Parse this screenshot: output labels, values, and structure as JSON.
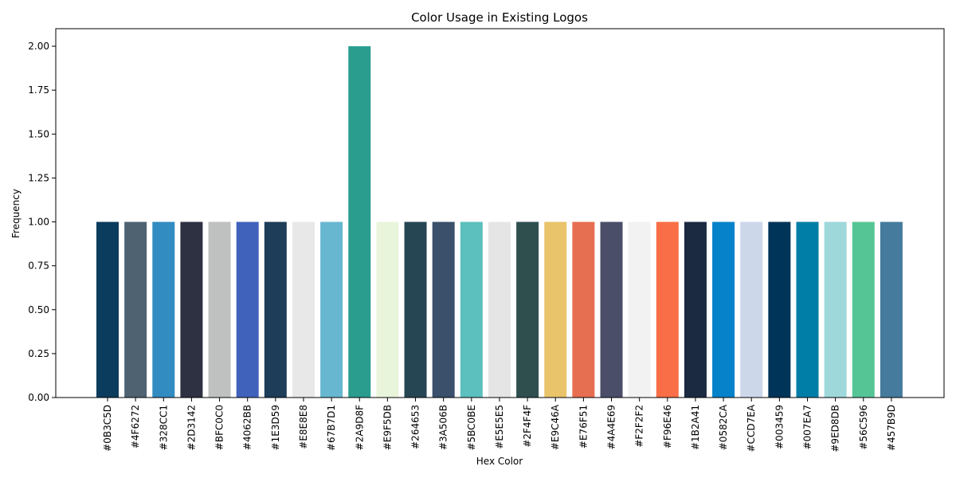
{
  "chart_data": {
    "type": "bar",
    "title": "Color Usage in Existing Logos",
    "xlabel": "Hex Color",
    "ylabel": "Frequency",
    "ylim": [
      0,
      2.1
    ],
    "yticks": [
      "0.00",
      "0.25",
      "0.50",
      "0.75",
      "1.00",
      "1.25",
      "1.50",
      "1.75",
      "2.00"
    ],
    "grid": false,
    "categories": [
      "#0B3C5D",
      "#4F6272",
      "#328CC1",
      "#2D3142",
      "#BFC0C0",
      "#4062BB",
      "#1E3D59",
      "#E8E8E8",
      "#67B7D1",
      "#2A9D8F",
      "#E9F5DB",
      "#264653",
      "#3A506B",
      "#5BC0BE",
      "#E5E5E5",
      "#2F4F4F",
      "#E9C46A",
      "#E76F51",
      "#4A4E69",
      "#F2F2F2",
      "#F96E46",
      "#1B2A41",
      "#0582CA",
      "#CCD7EA",
      "#003459",
      "#007EA7",
      "#9ED8DB",
      "#56C596",
      "#457B9D"
    ],
    "values": [
      1,
      1,
      1,
      1,
      1,
      1,
      1,
      1,
      1,
      2,
      1,
      1,
      1,
      1,
      1,
      1,
      1,
      1,
      1,
      1,
      1,
      1,
      1,
      1,
      1,
      1,
      1,
      1,
      1
    ],
    "bar_colors": [
      "#0B3C5D",
      "#4F6272",
      "#328CC1",
      "#2D3142",
      "#BFC0C0",
      "#4062BB",
      "#1E3D59",
      "#E8E8E8",
      "#67B7D1",
      "#2A9D8F",
      "#E9F5DB",
      "#264653",
      "#3A506B",
      "#5BC0BE",
      "#E5E5E5",
      "#2F4F4F",
      "#E9C46A",
      "#E76F51",
      "#4A4E69",
      "#F2F2F2",
      "#F96E46",
      "#1B2A41",
      "#0582CA",
      "#CCD7EA",
      "#003459",
      "#007EA7",
      "#9ED8DB",
      "#56C596",
      "#457B9D"
    ]
  }
}
